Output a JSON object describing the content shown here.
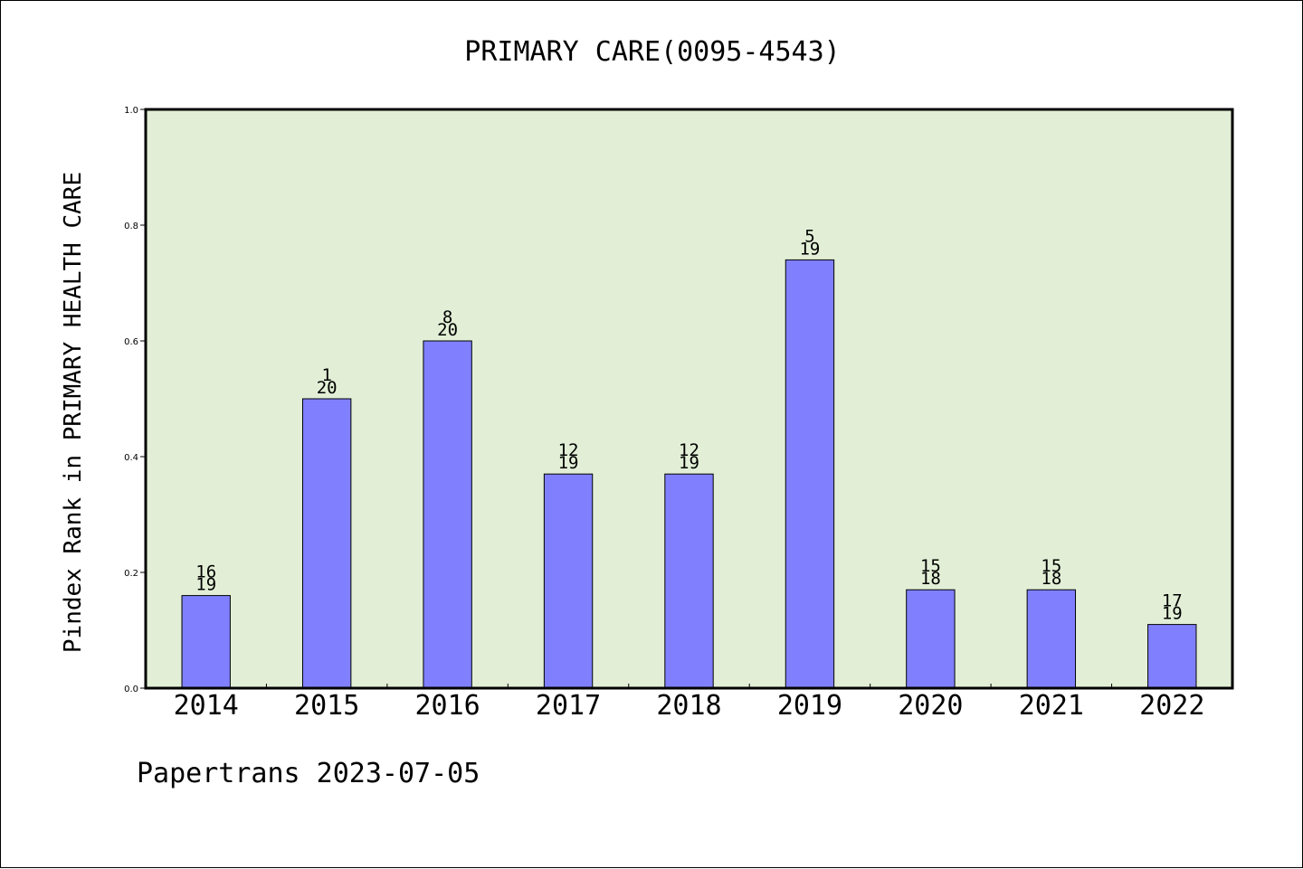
{
  "chart_data": {
    "type": "bar",
    "title": "PRIMARY CARE(0095-4543)",
    "ylabel": "Pindex Rank in PRIMARY HEALTH CARE",
    "xlabel": "",
    "ylim": [
      0,
      1.0
    ],
    "yticks": [
      "0.0",
      "0.2",
      "0.4",
      "0.6",
      "0.8",
      "1.0"
    ],
    "categories": [
      "2014",
      "2015",
      "2016",
      "2017",
      "2018",
      "2019",
      "2020",
      "2021",
      "2022"
    ],
    "values": [
      0.16,
      0.5,
      0.6,
      0.37,
      0.37,
      0.74,
      0.17,
      0.17,
      0.11
    ],
    "labels_top": [
      "16",
      "1",
      "8",
      "12",
      "12",
      "5",
      "15",
      "15",
      "17"
    ],
    "labels_bottom": [
      "19",
      "20",
      "20",
      "19",
      "19",
      "19",
      "18",
      "18",
      "19"
    ],
    "grid": false,
    "legend": "none",
    "colors": {
      "bar": "#8080ff",
      "plot_bg": "#e2efd6",
      "axis": "#000000"
    }
  },
  "footer": "Papertrans 2023-07-05"
}
